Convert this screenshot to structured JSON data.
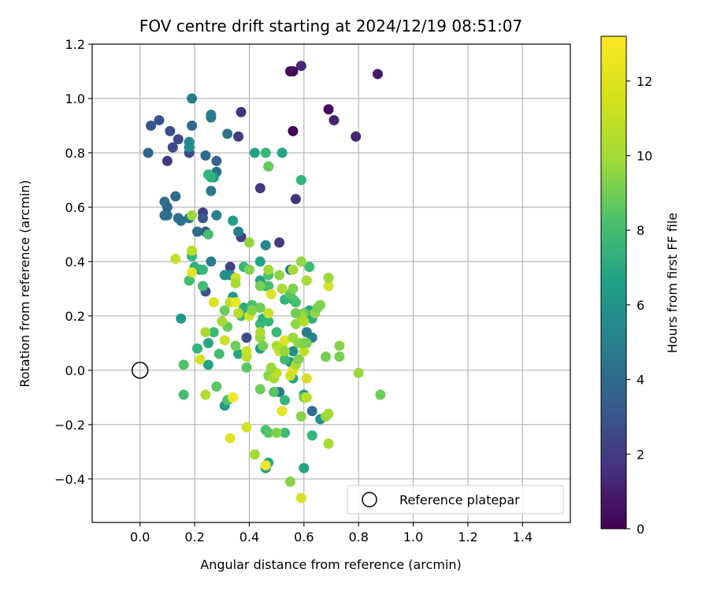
{
  "chart_data": {
    "type": "scatter",
    "title": "FOV centre drift starting at 2024/12/19 08:51:07",
    "xlabel": "Angular distance from reference (arcmin)",
    "ylabel": "Rotation from reference (arcmin)",
    "xlim": [
      -0.175,
      1.575
    ],
    "ylim": [
      -0.56,
      1.2
    ],
    "xticks": [
      "0.0",
      "0.2",
      "0.4",
      "0.6",
      "0.8",
      "1.0",
      "1.2",
      "1.4"
    ],
    "yticks": [
      "−0.4",
      "−0.2",
      "0.0",
      "0.2",
      "0.4",
      "0.6",
      "0.8",
      "1.0",
      "1.2"
    ],
    "grid": true,
    "legend": {
      "label": "Reference platepar",
      "location": "lower right"
    },
    "colorbar": {
      "label": "Hours from first FF file",
      "colormap": "viridis",
      "range": [
        0,
        13.2
      ],
      "ticks": [
        "0",
        "2",
        "4",
        "6",
        "8",
        "10",
        "12"
      ]
    },
    "reference_point": {
      "x": 0.0,
      "y": 0.0
    },
    "series": [
      {
        "points": [
          [
            0.55,
            1.1,
            0.2
          ],
          [
            0.56,
            1.1,
            0.4
          ],
          [
            0.59,
            1.12,
            1.6
          ],
          [
            0.87,
            1.09,
            0.9
          ],
          [
            0.56,
            0.88,
            0.1
          ],
          [
            0.69,
            0.96,
            0.3
          ],
          [
            0.71,
            0.92,
            1.2
          ],
          [
            0.79,
            0.86,
            1.3
          ],
          [
            0.57,
            0.63,
            2.0
          ],
          [
            0.44,
            0.67,
            2.2
          ],
          [
            0.51,
            0.47,
            2.3
          ],
          [
            0.37,
            0.95,
            2.0
          ],
          [
            0.36,
            0.86,
            2.2
          ],
          [
            0.37,
            0.49,
            2.4
          ],
          [
            0.33,
            0.38,
            2.5
          ],
          [
            0.23,
            0.58,
            2.5
          ],
          [
            0.1,
            0.77,
            2.3
          ],
          [
            0.12,
            0.82,
            2.9
          ],
          [
            0.14,
            0.85,
            3.0
          ],
          [
            0.07,
            0.92,
            3.3
          ],
          [
            0.04,
            0.9,
            3.4
          ],
          [
            0.11,
            0.88,
            3.2
          ],
          [
            0.18,
            0.8,
            3.0
          ],
          [
            0.23,
            0.56,
            3.5
          ],
          [
            0.24,
            0.51,
            3.6
          ],
          [
            0.24,
            0.29,
            3.4
          ],
          [
            0.39,
            0.12,
            3.2
          ],
          [
            0.63,
            -0.15,
            4.6
          ],
          [
            0.28,
            0.77,
            4.3
          ],
          [
            0.28,
            0.73,
            4.8
          ],
          [
            0.24,
            0.79,
            4.5
          ],
          [
            0.19,
            0.9,
            4.5
          ],
          [
            0.03,
            0.8,
            4.2
          ],
          [
            0.13,
            0.64,
            4.5
          ],
          [
            0.09,
            0.62,
            4.8
          ],
          [
            0.1,
            0.57,
            5.0
          ],
          [
            0.09,
            0.57,
            4.6
          ],
          [
            0.1,
            0.6,
            4.3
          ],
          [
            0.15,
            0.55,
            4.8
          ],
          [
            0.14,
            0.56,
            4.9
          ],
          [
            0.18,
            0.56,
            5.0
          ],
          [
            0.21,
            0.51,
            4.7
          ],
          [
            0.26,
            0.66,
            5.2
          ],
          [
            0.32,
            0.87,
            5.1
          ],
          [
            0.26,
            0.94,
            5.8
          ],
          [
            0.26,
            0.93,
            5.5
          ],
          [
            0.19,
            1.0,
            5.4
          ],
          [
            0.18,
            0.84,
            6.2
          ],
          [
            0.18,
            0.82,
            6.4
          ],
          [
            0.28,
            0.57,
            5.8
          ],
          [
            0.36,
            0.51,
            5.5
          ],
          [
            0.26,
            0.4,
            5.5
          ],
          [
            0.33,
            0.35,
            6.1
          ],
          [
            0.31,
            0.35,
            6.5
          ],
          [
            0.22,
            0.37,
            6.0
          ],
          [
            0.46,
            0.46,
            6.0
          ],
          [
            0.55,
            0.37,
            5.4
          ],
          [
            0.51,
            -0.08,
            5.3
          ],
          [
            0.61,
            0.14,
            5.6
          ],
          [
            0.63,
            0.12,
            5.8
          ],
          [
            0.66,
            -0.18,
            6.5
          ],
          [
            0.56,
            0.07,
            6.6
          ],
          [
            0.55,
            0.03,
            7.3
          ],
          [
            0.34,
            0.27,
            7.1
          ],
          [
            0.34,
            0.55,
            7.4
          ],
          [
            0.27,
            0.71,
            7.0
          ],
          [
            0.42,
            0.8,
            7.6
          ],
          [
            0.52,
            0.8,
            7.8
          ],
          [
            0.59,
            0.7,
            8.6
          ],
          [
            0.46,
            0.8,
            8.7
          ],
          [
            0.47,
            0.75,
            8.6
          ],
          [
            0.47,
            0.75,
            10.0
          ],
          [
            0.26,
            0.71,
            8.4
          ],
          [
            0.25,
            0.72,
            8.6
          ],
          [
            0.44,
            0.4,
            7.6
          ],
          [
            0.44,
            0.33,
            7.6
          ],
          [
            0.46,
            0.31,
            8.2
          ],
          [
            0.44,
            0.08,
            7.4
          ],
          [
            0.36,
            0.06,
            7.8
          ],
          [
            0.25,
            0.02,
            7.6
          ],
          [
            0.25,
            0.1,
            7.8
          ],
          [
            0.31,
            -0.13,
            7.2
          ],
          [
            0.46,
            -0.36,
            7.1
          ],
          [
            0.47,
            -0.34,
            8.0
          ],
          [
            0.56,
            -0.03,
            7.7
          ],
          [
            0.6,
            -0.36,
            7.6
          ],
          [
            0.6,
            -0.09,
            7.0
          ],
          [
            0.62,
            0.2,
            7.8
          ],
          [
            0.62,
            0.22,
            7.8
          ],
          [
            0.63,
            0.19,
            8.3
          ],
          [
            0.38,
            0.23,
            8.2
          ],
          [
            0.38,
            0.38,
            8.8
          ],
          [
            0.37,
            0.2,
            9.0
          ],
          [
            0.41,
            0.24,
            9.3
          ],
          [
            0.44,
            0.17,
            8.9
          ],
          [
            0.45,
            0.19,
            8.5
          ],
          [
            0.47,
            0.18,
            8.8
          ],
          [
            0.5,
            0.14,
            8.9
          ],
          [
            0.53,
            0.26,
            8.6
          ],
          [
            0.56,
            0.26,
            8.7
          ],
          [
            0.57,
            0.25,
            9.3
          ],
          [
            0.53,
            0.04,
            9.1
          ],
          [
            0.53,
            -0.11,
            8.8
          ],
          [
            0.63,
            -0.24,
            8.8
          ],
          [
            0.62,
            0.38,
            9.0
          ],
          [
            0.46,
            -0.22,
            9.4
          ],
          [
            0.47,
            -0.23,
            9.6
          ],
          [
            0.53,
            -0.23,
            9.0
          ],
          [
            0.15,
            0.19,
            7.0
          ],
          [
            0.16,
            0.02,
            9.5
          ],
          [
            0.16,
            -0.09,
            9.2
          ],
          [
            0.21,
            0.08,
            8.6
          ],
          [
            0.2,
            0.38,
            8.4
          ],
          [
            0.18,
            0.33,
            9.2
          ],
          [
            0.23,
            0.31,
            9.1
          ],
          [
            0.25,
            0.5,
            9.2
          ],
          [
            0.23,
            0.37,
            8.7
          ],
          [
            0.19,
            0.42,
            8.8
          ],
          [
            0.27,
            0.14,
            8.9
          ],
          [
            0.29,
            0.06,
            9.1
          ],
          [
            0.32,
            -0.11,
            9.5
          ],
          [
            0.28,
            -0.06,
            9.8
          ],
          [
            0.31,
            0.22,
            10.1
          ],
          [
            0.32,
            0.16,
            10.1
          ],
          [
            0.35,
            0.09,
            10.3
          ],
          [
            0.39,
            0.01,
            9.8
          ],
          [
            0.47,
            0.31,
            9.3
          ],
          [
            0.47,
            0.35,
            9.4
          ],
          [
            0.55,
            0.28,
            9.8
          ],
          [
            0.6,
            0.21,
            10.2
          ],
          [
            0.61,
            0.1,
            10.3
          ],
          [
            0.6,
            -0.1,
            10.5
          ],
          [
            0.59,
            -0.17,
            10.8
          ],
          [
            0.68,
            0.05,
            10.4
          ],
          [
            0.68,
            -0.17,
            11.0
          ],
          [
            0.69,
            -0.16,
            11.4
          ],
          [
            0.73,
            0.09,
            10.8
          ],
          [
            0.73,
            0.05,
            10.4
          ],
          [
            0.8,
            -0.01,
            11.2
          ],
          [
            0.88,
            -0.09,
            10.2
          ],
          [
            0.69,
            -0.27,
            11.4
          ],
          [
            0.66,
            0.24,
            10.7
          ],
          [
            0.64,
            0.21,
            10.9
          ],
          [
            0.65,
            0.23,
            10.5
          ],
          [
            0.69,
            0.31,
            12.4
          ],
          [
            0.69,
            0.34,
            11.2
          ],
          [
            0.61,
            0.33,
            11.4
          ],
          [
            0.59,
            0.4,
            11.0
          ],
          [
            0.56,
            0.37,
            11.4
          ],
          [
            0.52,
            0.3,
            11.5
          ],
          [
            0.51,
            0.35,
            10.9
          ],
          [
            0.48,
            0.28,
            12.5
          ],
          [
            0.47,
            0.37,
            11.3
          ],
          [
            0.4,
            0.47,
            11.0
          ],
          [
            0.4,
            0.37,
            10.6
          ],
          [
            0.35,
            0.34,
            12.2
          ],
          [
            0.35,
            0.32,
            11.5
          ],
          [
            0.36,
            0.21,
            11.8
          ],
          [
            0.33,
            0.25,
            11.9
          ],
          [
            0.35,
            0.25,
            12.8
          ],
          [
            0.3,
            0.18,
            11.4
          ],
          [
            0.31,
            0.11,
            12.2
          ],
          [
            0.27,
            0.25,
            12.5
          ],
          [
            0.22,
            0.04,
            12.4
          ],
          [
            0.24,
            0.14,
            11.5
          ],
          [
            0.24,
            -0.09,
            11.6
          ],
          [
            0.19,
            0.44,
            11.8
          ],
          [
            0.19,
            0.57,
            11.2
          ],
          [
            0.19,
            0.36,
            12.6
          ],
          [
            0.13,
            0.41,
            12.0
          ],
          [
            0.34,
            -0.1,
            12.9
          ],
          [
            0.33,
            -0.25,
            12.7
          ],
          [
            0.39,
            -0.21,
            12.4
          ],
          [
            0.42,
            -0.31,
            11.4
          ],
          [
            0.46,
            -0.35,
            12.8
          ],
          [
            0.52,
            -0.15,
            12.7
          ],
          [
            0.55,
            -0.41,
            10.8
          ],
          [
            0.59,
            -0.47,
            12.4
          ],
          [
            0.5,
            -0.23,
            10.6
          ],
          [
            0.47,
            -0.02,
            10.8
          ],
          [
            0.49,
            -0.03,
            11.4
          ],
          [
            0.5,
            -0.01,
            11.9
          ],
          [
            0.51,
            0.07,
            12.1
          ],
          [
            0.52,
            0.09,
            11.7
          ],
          [
            0.5,
            0.09,
            11.6
          ],
          [
            0.48,
            0.01,
            11.2
          ],
          [
            0.47,
            0.21,
            12.1
          ],
          [
            0.53,
            0.11,
            12.6
          ],
          [
            0.53,
            0.07,
            11.1
          ],
          [
            0.56,
            0.0,
            12.9
          ],
          [
            0.55,
            -0.02,
            12.3
          ],
          [
            0.57,
            0.02,
            11.5
          ],
          [
            0.59,
            0.2,
            11.3
          ],
          [
            0.6,
            0.18,
            11.6
          ],
          [
            0.6,
            0.07,
            11.9
          ],
          [
            0.61,
            -0.03,
            12.4
          ],
          [
            0.61,
            -0.1,
            11.9
          ],
          [
            0.58,
            0.04,
            10.6
          ],
          [
            0.44,
            -0.07,
            10.2
          ],
          [
            0.44,
            0.12,
            11.0
          ],
          [
            0.44,
            0.14,
            11.6
          ],
          [
            0.4,
            0.2,
            12.3
          ],
          [
            0.41,
            0.22,
            10.8
          ],
          [
            0.39,
            0.05,
            11.8
          ],
          [
            0.39,
            0.07,
            12.1
          ],
          [
            0.44,
            0.31,
            10.4
          ],
          [
            0.44,
            0.23,
            10.3
          ],
          [
            0.49,
            -0.08,
            9.6
          ],
          [
            0.45,
            0.09,
            10.4
          ],
          [
            0.56,
            0.3,
            10.6
          ],
          [
            0.56,
            0.12,
            11.2
          ],
          [
            0.58,
            0.1,
            10.9
          ],
          [
            0.57,
            0.21,
            10.3
          ],
          [
            0.57,
            0.17,
            11.0
          ],
          [
            0.6,
            0.1,
            10.6
          ]
        ]
      }
    ]
  }
}
